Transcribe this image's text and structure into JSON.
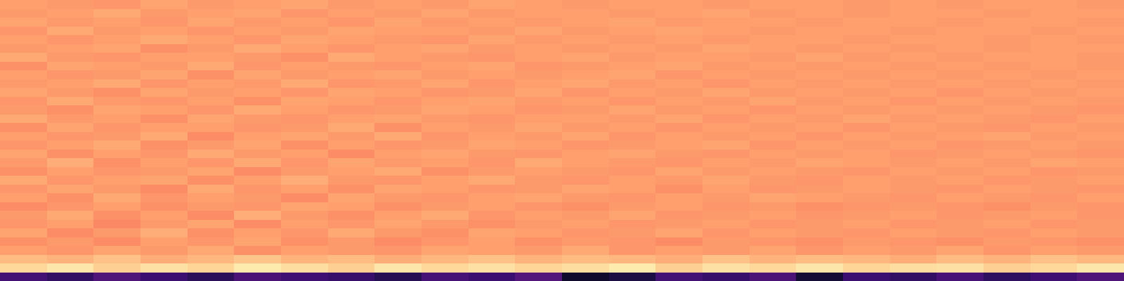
{
  "chart_data": {
    "type": "heatmap",
    "tick_labels": false,
    "color": "magma",
    "zlim": [
      0,
      1
    ],
    "cells": [
      [
        0.22,
        0.18,
        0.25,
        0.2,
        0.16,
        0.24,
        0.21,
        0.19,
        0.15,
        0.23,
        0.2,
        0.26,
        0.08,
        0.12,
        0.22,
        0.19,
        0.24,
        0.1,
        0.2,
        0.18,
        0.23,
        0.17,
        0.21,
        0.25
      ],
      [
        0.92,
        0.95,
        0.9,
        0.94,
        0.91,
        0.96,
        0.93,
        0.9,
        0.95,
        0.92,
        0.94,
        0.91,
        0.93,
        0.96,
        0.9,
        0.94,
        0.92,
        0.95,
        0.91,
        0.93,
        0.94,
        0.9,
        0.92,
        0.95
      ],
      [
        0.86,
        0.84,
        0.87,
        0.83,
        0.85,
        0.88,
        0.84,
        0.86,
        0.83,
        0.85,
        0.87,
        0.84,
        0.86,
        0.85,
        0.83,
        0.87,
        0.84,
        0.86,
        0.85,
        0.83,
        0.86,
        0.84,
        0.87,
        0.85
      ],
      [
        0.8,
        0.78,
        0.81,
        0.79,
        0.82,
        0.77,
        0.8,
        0.79,
        0.78,
        0.81,
        0.8,
        0.79,
        0.82,
        0.78,
        0.8,
        0.79,
        0.81,
        0.78,
        0.8,
        0.79,
        0.81,
        0.78,
        0.8,
        0.79
      ],
      [
        0.77,
        0.79,
        0.76,
        0.8,
        0.78,
        0.81,
        0.77,
        0.79,
        0.76,
        0.78,
        0.8,
        0.77,
        0.79,
        0.78,
        0.76,
        0.79,
        0.78,
        0.77,
        0.79,
        0.78,
        0.77,
        0.79,
        0.78,
        0.77
      ],
      [
        0.81,
        0.76,
        0.79,
        0.83,
        0.77,
        0.8,
        0.78,
        0.82,
        0.79,
        0.77,
        0.81,
        0.8,
        0.78,
        0.79,
        0.81,
        0.78,
        0.8,
        0.79,
        0.78,
        0.8,
        0.79,
        0.78,
        0.8,
        0.79
      ],
      [
        0.78,
        0.8,
        0.75,
        0.79,
        0.81,
        0.76,
        0.8,
        0.78,
        0.81,
        0.79,
        0.77,
        0.79,
        0.8,
        0.78,
        0.79,
        0.8,
        0.78,
        0.79,
        0.8,
        0.78,
        0.79,
        0.8,
        0.78,
        0.79
      ],
      [
        0.79,
        0.82,
        0.77,
        0.8,
        0.76,
        0.83,
        0.79,
        0.77,
        0.8,
        0.82,
        0.78,
        0.8,
        0.79,
        0.81,
        0.78,
        0.79,
        0.8,
        0.78,
        0.79,
        0.8,
        0.78,
        0.79,
        0.8,
        0.78
      ],
      [
        0.76,
        0.78,
        0.8,
        0.77,
        0.79,
        0.78,
        0.81,
        0.8,
        0.77,
        0.79,
        0.8,
        0.78,
        0.77,
        0.79,
        0.8,
        0.78,
        0.79,
        0.77,
        0.78,
        0.79,
        0.78,
        0.77,
        0.79,
        0.78
      ],
      [
        0.8,
        0.77,
        0.82,
        0.78,
        0.8,
        0.79,
        0.76,
        0.81,
        0.79,
        0.78,
        0.8,
        0.81,
        0.79,
        0.78,
        0.8,
        0.79,
        0.81,
        0.8,
        0.79,
        0.78,
        0.8,
        0.79,
        0.78,
        0.8
      ],
      [
        0.78,
        0.81,
        0.79,
        0.76,
        0.82,
        0.78,
        0.8,
        0.77,
        0.81,
        0.8,
        0.78,
        0.79,
        0.81,
        0.8,
        0.77,
        0.8,
        0.78,
        0.79,
        0.8,
        0.79,
        0.78,
        0.8,
        0.79,
        0.78
      ],
      [
        0.82,
        0.78,
        0.8,
        0.81,
        0.77,
        0.8,
        0.83,
        0.79,
        0.78,
        0.8,
        0.82,
        0.79,
        0.78,
        0.8,
        0.79,
        0.81,
        0.79,
        0.78,
        0.8,
        0.79,
        0.8,
        0.78,
        0.79,
        0.8
      ],
      [
        0.77,
        0.8,
        0.78,
        0.79,
        0.81,
        0.76,
        0.79,
        0.8,
        0.82,
        0.77,
        0.79,
        0.8,
        0.79,
        0.78,
        0.81,
        0.79,
        0.8,
        0.79,
        0.78,
        0.8,
        0.79,
        0.8,
        0.78,
        0.79
      ],
      [
        0.79,
        0.83,
        0.77,
        0.8,
        0.78,
        0.82,
        0.78,
        0.81,
        0.79,
        0.8,
        0.78,
        0.82,
        0.8,
        0.79,
        0.78,
        0.8,
        0.79,
        0.81,
        0.8,
        0.79,
        0.8,
        0.79,
        0.81,
        0.8
      ],
      [
        0.81,
        0.77,
        0.8,
        0.78,
        0.82,
        0.79,
        0.8,
        0.76,
        0.8,
        0.81,
        0.79,
        0.78,
        0.8,
        0.81,
        0.79,
        0.78,
        0.8,
        0.79,
        0.8,
        0.78,
        0.79,
        0.8,
        0.79,
        0.78
      ],
      [
        0.78,
        0.8,
        0.82,
        0.77,
        0.79,
        0.81,
        0.77,
        0.8,
        0.78,
        0.79,
        0.81,
        0.8,
        0.78,
        0.79,
        0.8,
        0.81,
        0.78,
        0.8,
        0.79,
        0.8,
        0.78,
        0.79,
        0.8,
        0.79
      ],
      [
        0.8,
        0.78,
        0.79,
        0.82,
        0.76,
        0.8,
        0.81,
        0.79,
        0.82,
        0.78,
        0.8,
        0.79,
        0.81,
        0.78,
        0.8,
        0.79,
        0.8,
        0.78,
        0.8,
        0.79,
        0.8,
        0.81,
        0.79,
        0.8
      ],
      [
        0.77,
        0.81,
        0.78,
        0.8,
        0.8,
        0.78,
        0.79,
        0.82,
        0.77,
        0.8,
        0.79,
        0.81,
        0.79,
        0.8,
        0.78,
        0.8,
        0.79,
        0.8,
        0.78,
        0.8,
        0.79,
        0.78,
        0.8,
        0.79
      ],
      [
        0.82,
        0.79,
        0.8,
        0.77,
        0.81,
        0.79,
        0.78,
        0.8,
        0.81,
        0.79,
        0.78,
        0.8,
        0.8,
        0.79,
        0.81,
        0.78,
        0.8,
        0.79,
        0.81,
        0.79,
        0.8,
        0.79,
        0.78,
        0.8
      ],
      [
        0.79,
        0.77,
        0.81,
        0.8,
        0.78,
        0.82,
        0.8,
        0.78,
        0.79,
        0.81,
        0.8,
        0.78,
        0.79,
        0.81,
        0.79,
        0.8,
        0.78,
        0.8,
        0.79,
        0.8,
        0.79,
        0.8,
        0.79,
        0.78
      ],
      [
        0.78,
        0.82,
        0.79,
        0.78,
        0.8,
        0.77,
        0.81,
        0.8,
        0.78,
        0.8,
        0.81,
        0.79,
        0.8,
        0.78,
        0.8,
        0.79,
        0.81,
        0.79,
        0.8,
        0.78,
        0.8,
        0.79,
        0.8,
        0.79
      ],
      [
        0.81,
        0.79,
        0.77,
        0.81,
        0.79,
        0.8,
        0.78,
        0.81,
        0.8,
        0.78,
        0.79,
        0.81,
        0.78,
        0.8,
        0.79,
        0.81,
        0.79,
        0.8,
        0.79,
        0.8,
        0.78,
        0.8,
        0.79,
        0.8
      ],
      [
        0.79,
        0.8,
        0.82,
        0.78,
        0.8,
        0.79,
        0.82,
        0.78,
        0.79,
        0.81,
        0.78,
        0.8,
        0.81,
        0.79,
        0.8,
        0.78,
        0.8,
        0.79,
        0.8,
        0.79,
        0.8,
        0.79,
        0.8,
        0.79
      ],
      [
        0.8,
        0.78,
        0.79,
        0.81,
        0.77,
        0.81,
        0.79,
        0.8,
        0.81,
        0.79,
        0.8,
        0.79,
        0.8,
        0.81,
        0.78,
        0.8,
        0.79,
        0.8,
        0.79,
        0.8,
        0.79,
        0.8,
        0.79,
        0.8
      ],
      [
        0.77,
        0.81,
        0.8,
        0.79,
        0.82,
        0.78,
        0.8,
        0.79,
        0.78,
        0.8,
        0.81,
        0.78,
        0.79,
        0.8,
        0.81,
        0.79,
        0.8,
        0.79,
        0.8,
        0.79,
        0.8,
        0.79,
        0.8,
        0.79
      ],
      [
        0.82,
        0.79,
        0.78,
        0.8,
        0.8,
        0.79,
        0.77,
        0.82,
        0.8,
        0.79,
        0.78,
        0.8,
        0.81,
        0.79,
        0.8,
        0.8,
        0.79,
        0.81,
        0.79,
        0.8,
        0.79,
        0.8,
        0.8,
        0.79
      ],
      [
        0.79,
        0.8,
        0.81,
        0.77,
        0.79,
        0.82,
        0.8,
        0.78,
        0.8,
        0.81,
        0.79,
        0.8,
        0.79,
        0.8,
        0.79,
        0.81,
        0.8,
        0.79,
        0.8,
        0.79,
        0.8,
        0.79,
        0.8,
        0.8
      ],
      [
        0.8,
        0.78,
        0.8,
        0.82,
        0.8,
        0.78,
        0.81,
        0.8,
        0.79,
        0.78,
        0.81,
        0.79,
        0.8,
        0.79,
        0.8,
        0.79,
        0.8,
        0.8,
        0.79,
        0.8,
        0.8,
        0.79,
        0.8,
        0.79
      ],
      [
        0.78,
        0.82,
        0.79,
        0.8,
        0.78,
        0.8,
        0.79,
        0.81,
        0.8,
        0.8,
        0.79,
        0.81,
        0.79,
        0.8,
        0.81,
        0.8,
        0.79,
        0.8,
        0.8,
        0.79,
        0.8,
        0.8,
        0.79,
        0.8
      ],
      [
        0.81,
        0.79,
        0.8,
        0.78,
        0.81,
        0.79,
        0.8,
        0.78,
        0.81,
        0.79,
        0.8,
        0.79,
        0.8,
        0.81,
        0.79,
        0.8,
        0.8,
        0.79,
        0.8,
        0.8,
        0.79,
        0.8,
        0.8,
        0.79
      ],
      [
        0.79,
        0.8,
        0.82,
        0.79,
        0.8,
        0.81,
        0.78,
        0.8,
        0.79,
        0.81,
        0.79,
        0.8,
        0.8,
        0.79,
        0.8,
        0.81,
        0.79,
        0.8,
        0.79,
        0.8,
        0.8,
        0.79,
        0.8,
        0.8
      ],
      [
        0.8,
        0.79,
        0.78,
        0.81,
        0.79,
        0.8,
        0.81,
        0.79,
        0.8,
        0.79,
        0.81,
        0.8,
        0.79,
        0.8,
        0.8,
        0.79,
        0.8,
        0.8,
        0.79,
        0.8,
        0.79,
        0.8,
        0.8,
        0.79
      ]
    ]
  }
}
